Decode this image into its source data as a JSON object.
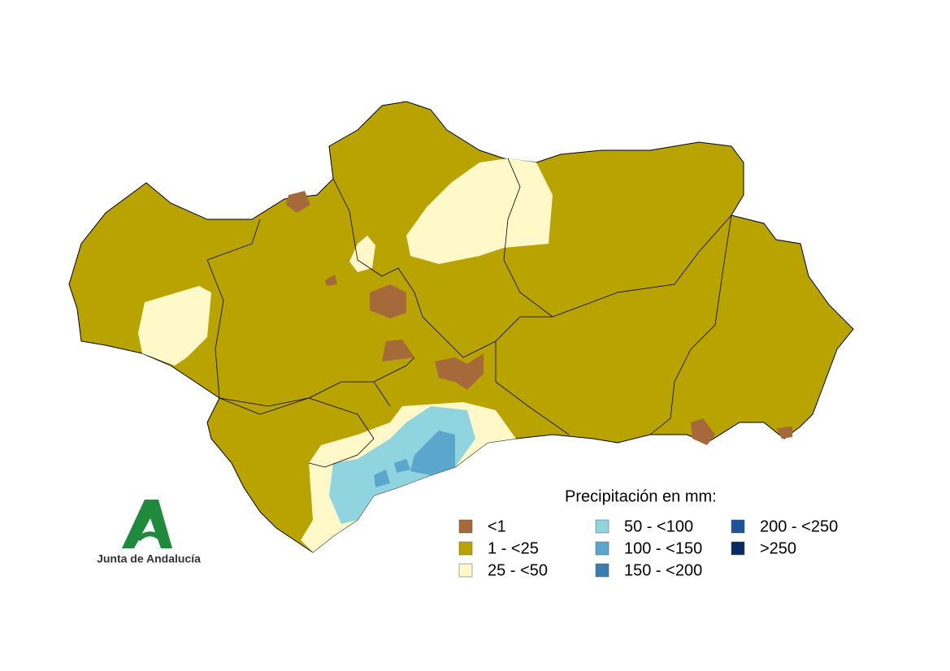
{
  "map": {
    "legend": {
      "title": "Precipitación en mm:",
      "items": [
        {
          "label": "<1",
          "color": "#a6693a"
        },
        {
          "label": "1 - <25",
          "color": "#b9a300"
        },
        {
          "label": "25 - <50",
          "color": "#fff8c8"
        },
        {
          "label": "50 - <100",
          "color": "#90d4e0"
        },
        {
          "label": "100 - <150",
          "color": "#5aa6cd"
        },
        {
          "label": "150 - <200",
          "color": "#3a7eb0"
        },
        {
          "label": "200 - <250",
          "color": "#1f5596"
        },
        {
          "label": ">250",
          "color": "#0a2a66"
        }
      ]
    },
    "logo": {
      "text": "Junta de Andalucía"
    }
  }
}
